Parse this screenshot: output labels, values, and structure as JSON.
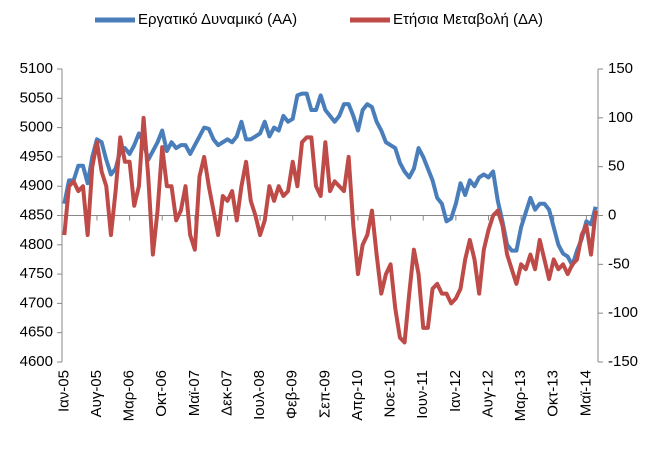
{
  "chart_data": {
    "type": "line",
    "categories": [
      "Ιαν-05",
      null,
      null,
      null,
      null,
      null,
      null,
      "Αυγ-05",
      null,
      null,
      null,
      null,
      null,
      null,
      "Μαρ-06",
      null,
      null,
      null,
      null,
      null,
      null,
      "Οκτ-06",
      null,
      null,
      null,
      null,
      null,
      null,
      "Μαϊ-07",
      null,
      null,
      null,
      null,
      null,
      null,
      "Δεκ-07",
      null,
      null,
      null,
      null,
      null,
      null,
      "Ιουλ-08",
      null,
      null,
      null,
      null,
      null,
      null,
      "Φεβ-09",
      null,
      null,
      null,
      null,
      null,
      null,
      "Σεπ-09",
      null,
      null,
      null,
      null,
      null,
      null,
      "Απρ-10",
      null,
      null,
      null,
      null,
      null,
      null,
      "Νοε-10",
      null,
      null,
      null,
      null,
      null,
      null,
      "Ιουν-11",
      null,
      null,
      null,
      null,
      null,
      null,
      "Ιαν-12",
      null,
      null,
      null,
      null,
      null,
      null,
      "Αυγ-12",
      null,
      null,
      null,
      null,
      null,
      null,
      "Μαρ-13",
      null,
      null,
      null,
      null,
      null,
      null,
      "Οκτ-13",
      null,
      null,
      null,
      null,
      null,
      null,
      "Μαϊ-14",
      null,
      null
    ],
    "series": [
      {
        "name": "Εργατικό Δυναμικό (ΑΑ)",
        "color": "#4a7ebb",
        "axis": "y",
        "values": [
          4870,
          4910,
          4910,
          4935,
          4935,
          4905,
          4950,
          4980,
          4975,
          4945,
          4920,
          4930,
          4960,
          4965,
          4955,
          4970,
          4990,
          4975,
          4945,
          4960,
          4975,
          4995,
          4960,
          4975,
          4965,
          4970,
          4970,
          4955,
          4970,
          4985,
          5000,
          4998,
          4980,
          4970,
          4975,
          4980,
          4975,
          4985,
          5010,
          4980,
          4980,
          4985,
          4990,
          5010,
          4985,
          5000,
          4995,
          5020,
          5010,
          5015,
          5055,
          5058,
          5058,
          5030,
          5030,
          5055,
          5030,
          5020,
          5010,
          5020,
          5040,
          5040,
          5020,
          4995,
          5030,
          5040,
          5035,
          5010,
          4995,
          4975,
          4970,
          4965,
          4940,
          4925,
          4915,
          4930,
          4965,
          4950,
          4930,
          4910,
          4880,
          4870,
          4840,
          4845,
          4870,
          4905,
          4885,
          4910,
          4900,
          4915,
          4920,
          4915,
          4925,
          4875,
          4840,
          4800,
          4790,
          4790,
          4830,
          4855,
          4880,
          4860,
          4870,
          4870,
          4860,
          4830,
          4800,
          4785,
          4780,
          4765,
          4790,
          4810,
          4840,
          4835,
          4865
        ]
      },
      {
        "name": "Ετήσια Μεταβολή (ΔΑ)",
        "color": "#be4b48",
        "axis": "y2",
        "values": [
          -20,
          30,
          35,
          25,
          30,
          -20,
          50,
          75,
          45,
          30,
          -20,
          25,
          80,
          55,
          55,
          10,
          30,
          100,
          40,
          -40,
          5,
          70,
          30,
          30,
          -5,
          5,
          30,
          -20,
          -35,
          40,
          60,
          30,
          5,
          -20,
          20,
          15,
          25,
          -5,
          30,
          55,
          15,
          0,
          -20,
          -5,
          30,
          15,
          30,
          20,
          25,
          55,
          30,
          75,
          80,
          80,
          30,
          20,
          75,
          25,
          35,
          30,
          25,
          60,
          -10,
          -60,
          -30,
          -20,
          5,
          -40,
          -80,
          -60,
          -50,
          -95,
          -125,
          -130,
          -80,
          -35,
          -60,
          -115,
          -115,
          -75,
          -70,
          -80,
          -80,
          -90,
          -85,
          -75,
          -45,
          -25,
          -45,
          -80,
          -35,
          -15,
          0,
          5,
          -10,
          -40,
          -55,
          -70,
          -50,
          -55,
          -40,
          -55,
          -25,
          -45,
          -65,
          -45,
          -55,
          -50,
          -60,
          -50,
          -45,
          -20,
          -10,
          -40,
          5
        ]
      }
    ],
    "ylim": [
      4600,
      5100
    ],
    "yticks": [
      4600,
      4650,
      4700,
      4750,
      4800,
      4850,
      4900,
      4950,
      5000,
      5050,
      5100
    ],
    "y2lim": [
      -150,
      150
    ],
    "y2ticks": [
      -150,
      -100,
      -50,
      0,
      50,
      100,
      150
    ],
    "legend": "top"
  }
}
